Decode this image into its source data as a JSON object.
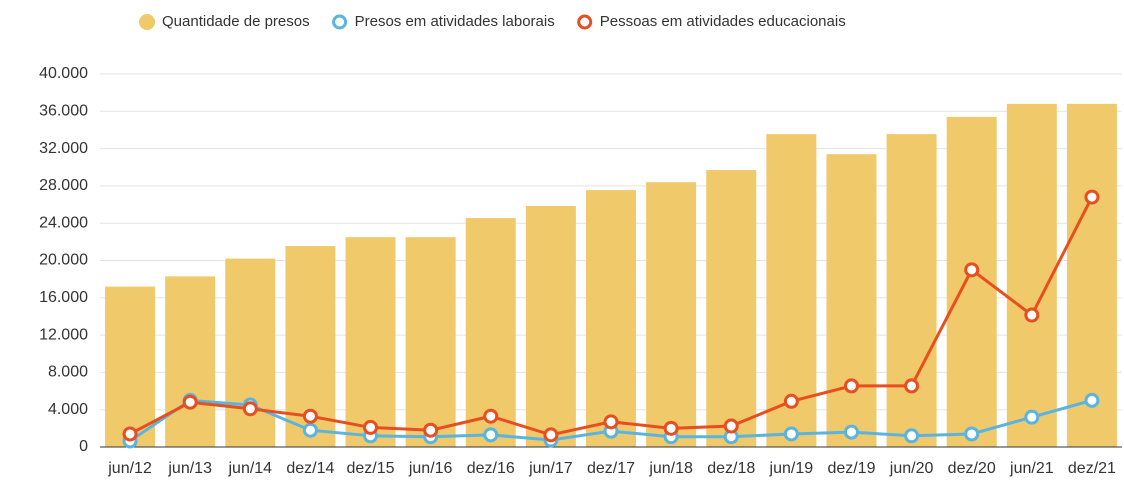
{
  "chart_data": {
    "type": "bar-line",
    "categories": [
      "jun/12",
      "jun/13",
      "jun/14",
      "dez/14",
      "dez/15",
      "jun/16",
      "dez/16",
      "jun/17",
      "dez/17",
      "jun/18",
      "dez/18",
      "jun/19",
      "dez/19",
      "jun/20",
      "dez/20",
      "jun/21",
      "dez/21"
    ],
    "series": [
      {
        "name": "Quantidade de presos",
        "type": "bar",
        "color": "#f0c96a",
        "values": [
          17200,
          18300,
          20200,
          21550,
          22500,
          22500,
          24550,
          25850,
          27550,
          28400,
          29700,
          33550,
          31400,
          33550,
          35400,
          36800,
          36800
        ]
      },
      {
        "name": "Presos em atividades laborais",
        "type": "line",
        "color": "#5ab4e0",
        "values": [
          650,
          5000,
          4500,
          1800,
          1200,
          1100,
          1300,
          750,
          1700,
          1100,
          1100,
          1400,
          1600,
          1200,
          1400,
          3200,
          5000
        ]
      },
      {
        "name": "Pessoas em atividades educacionais",
        "type": "line",
        "color": "#e84e1f",
        "values": [
          1400,
          4800,
          4100,
          3300,
          2100,
          1800,
          3300,
          1300,
          2700,
          2000,
          2250,
          4900,
          6550,
          6550,
          19000,
          14150,
          26800
        ]
      }
    ],
    "ylim": [
      0,
      40000
    ],
    "yticks": [
      0,
      {
        "value": 4000,
        "label": "4.000"
      },
      {
        "value": 8000,
        "label": "8.000"
      },
      {
        "value": 12000,
        "label": "12.000"
      },
      {
        "value": 16000,
        "label": "16.000"
      },
      {
        "value": 20000,
        "label": "20.000"
      },
      {
        "value": 24000,
        "label": "24.000"
      },
      {
        "value": 28000,
        "label": "28.000"
      },
      {
        "value": 32000,
        "label": "32.000"
      },
      {
        "value": 36000,
        "label": "36.000"
      },
      {
        "value": 40000,
        "label": "40.000"
      }
    ],
    "grid": true,
    "legend": "top"
  }
}
